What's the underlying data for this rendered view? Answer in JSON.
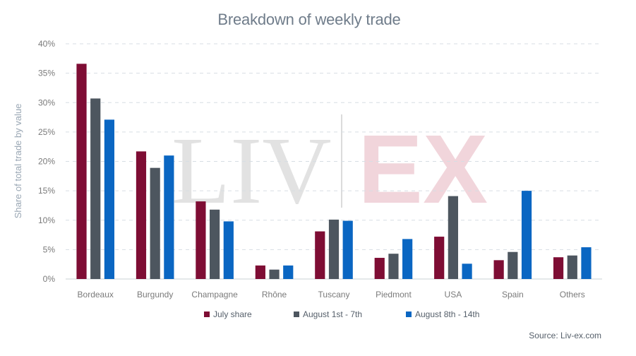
{
  "chart_data": {
    "type": "bar",
    "title": "Breakdown of weekly trade",
    "ylabel": "Share of total trade by value",
    "xlabel": "",
    "ylim": [
      0,
      40
    ],
    "y_ticks": [
      "0%",
      "5%",
      "10%",
      "15%",
      "20%",
      "25%",
      "30%",
      "35%",
      "40%"
    ],
    "categories": [
      "Bordeaux",
      "Burgundy",
      "Champagne",
      "Rhône",
      "Tuscany",
      "Piedmont",
      "USA",
      "Spain",
      "Others"
    ],
    "series": [
      {
        "name": "July share",
        "color": "#7e0d34",
        "values": [
          36.6,
          21.7,
          13.2,
          2.3,
          8.1,
          3.6,
          7.2,
          3.2,
          3.7
        ]
      },
      {
        "name": "August 1st - 7th",
        "color": "#4d565f",
        "values": [
          30.7,
          18.9,
          11.8,
          1.6,
          10.1,
          4.3,
          14.1,
          4.6,
          4.0
        ]
      },
      {
        "name": "August 8th - 14th",
        "color": "#0a66c2",
        "values": [
          27.1,
          21.0,
          9.8,
          2.3,
          9.9,
          6.8,
          2.6,
          15.0,
          5.4
        ]
      }
    ],
    "grid": true,
    "legend_position": "bottom-center",
    "source": "Source: Liv-ex.com",
    "watermark": {
      "left": "LIV",
      "right": "EX"
    }
  }
}
